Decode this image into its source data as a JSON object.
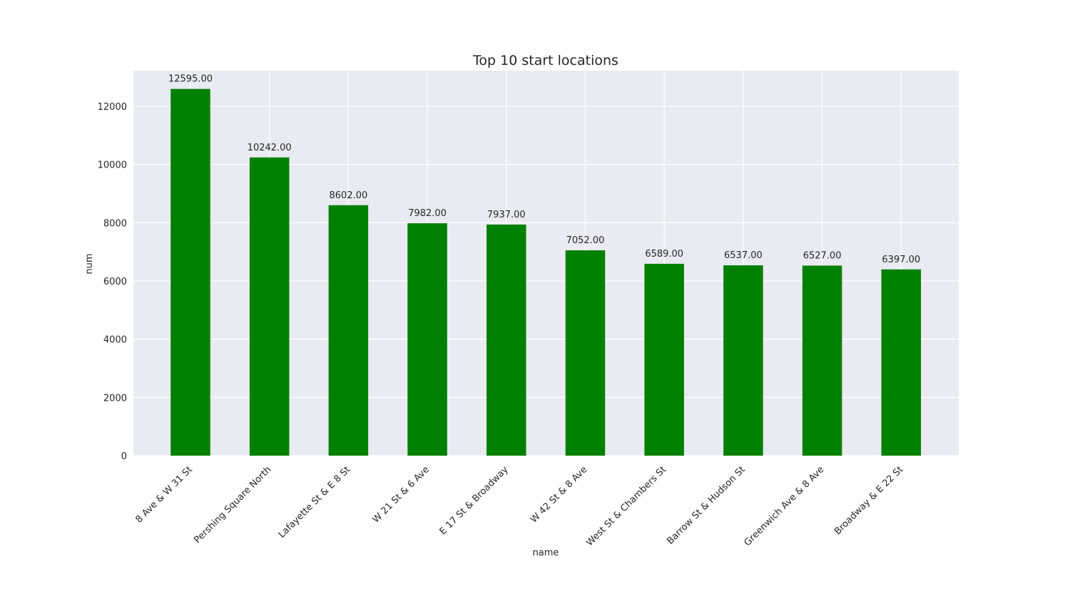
{
  "chart_data": {
    "type": "bar",
    "title": "Top 10 start locations",
    "xlabel": "name",
    "ylabel": "num",
    "categories": [
      "8 Ave & W 31 St",
      "Pershing Square North",
      "Lafayette St & E 8 St",
      "W 21 St & 6 Ave",
      "E 17 St & Broadway",
      "W 42 St & 8 Ave",
      "West St & Chambers St",
      "Barrow St & Hudson St",
      "Greenwich Ave & 8 Ave",
      "Broadway & E 22 St"
    ],
    "values": [
      12595,
      10242,
      8602,
      7982,
      7937,
      7052,
      6589,
      6537,
      6527,
      6397
    ],
    "data_labels": [
      "12595.00",
      "10242.00",
      "8602.00",
      "7982.00",
      "7937.00",
      "7052.00",
      "6589.00",
      "6537.00",
      "6527.00",
      "6397.00"
    ],
    "yticks": [
      0,
      2000,
      4000,
      6000,
      8000,
      10000,
      12000
    ],
    "ylim": [
      0,
      13225
    ],
    "grid": true,
    "colors": {
      "bar": "#008000",
      "plot_background": "#eaeaf2",
      "grid": "#ffffff",
      "text": "#262626"
    }
  }
}
